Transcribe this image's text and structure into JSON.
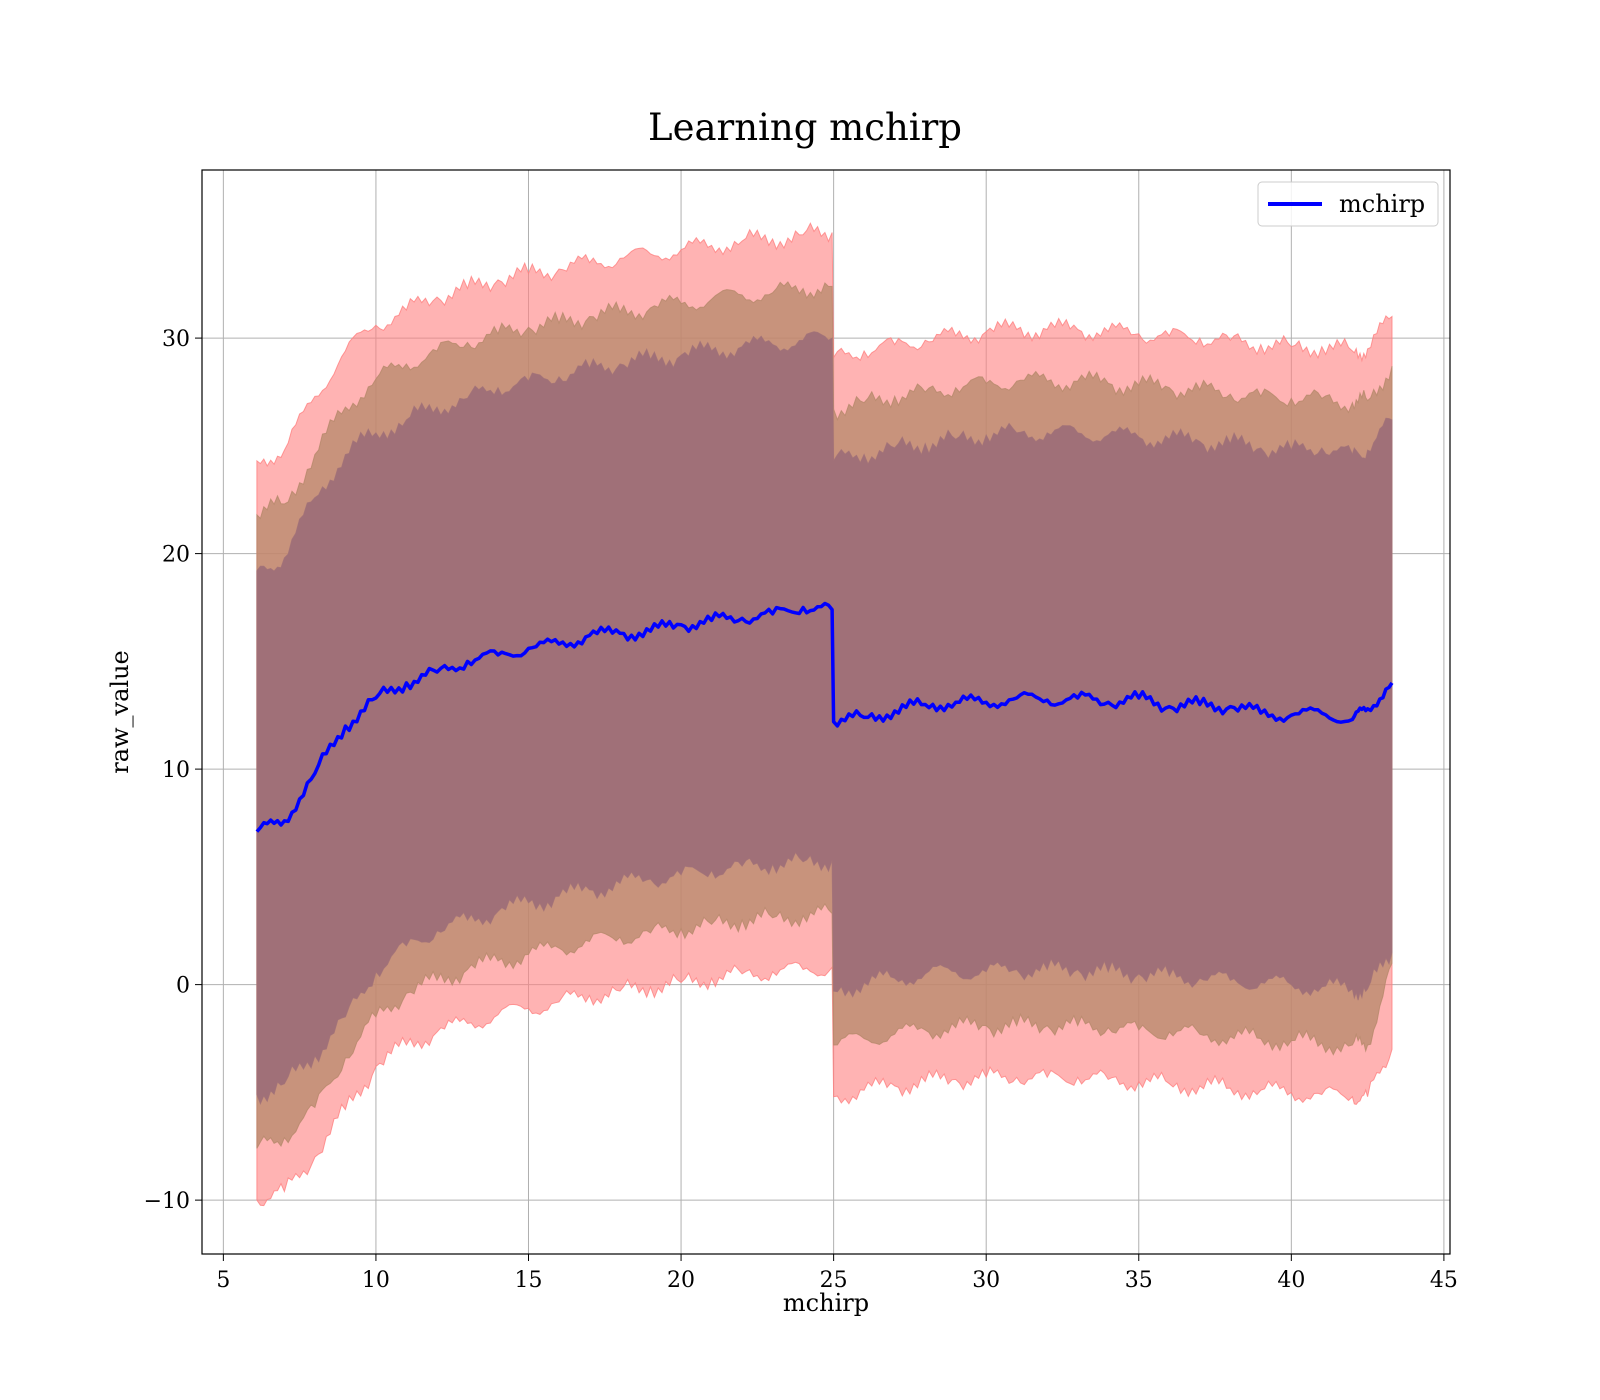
{
  "chart_data": {
    "type": "line",
    "title": "Learning mchirp",
    "xlabel": "mchirp",
    "ylabel": "raw_value",
    "xlim": [
      4.3,
      45.2
    ],
    "ylim": [
      -12.5,
      37.8
    ],
    "xticks": [
      5,
      10,
      15,
      20,
      25,
      30,
      35,
      40,
      45
    ],
    "yticks": [
      -10,
      0,
      10,
      20,
      30
    ],
    "xtick_labels": [
      "5",
      "10",
      "15",
      "20",
      "25",
      "30",
      "35",
      "40",
      "45"
    ],
    "ytick_labels": [
      "−10",
      "0",
      "10",
      "20",
      "30"
    ],
    "grid": true,
    "legend": {
      "position": "top-right",
      "entries": [
        "mchirp"
      ]
    },
    "colors": {
      "line": "#0000ff",
      "band_3sigma": "#ff8080",
      "band_2sigma": "#b5886a",
      "band_1sigma": "#a07078",
      "grid": "#b0b0b0"
    },
    "series": [
      {
        "name": "mchirp",
        "x": [
          6.1,
          7.0,
          8.0,
          9.0,
          10.0,
          11.0,
          12.0,
          13.0,
          14.0,
          15.0,
          16.0,
          17.0,
          18.0,
          19.0,
          20.0,
          21.0,
          22.0,
          23.0,
          24.0,
          24.95,
          25.0,
          26.0,
          27.0,
          28.0,
          29.0,
          30.0,
          31.0,
          32.0,
          33.0,
          34.0,
          35.0,
          36.0,
          37.0,
          38.0,
          39.0,
          40.0,
          41.0,
          42.0,
          42.5,
          43.3
        ],
        "values": [
          7.1,
          7.6,
          9.8,
          12.0,
          13.3,
          14.0,
          14.5,
          15.0,
          15.3,
          15.6,
          15.8,
          16.2,
          16.3,
          16.4,
          16.7,
          16.9,
          17.0,
          17.2,
          17.5,
          17.4,
          12.2,
          12.4,
          12.7,
          13.0,
          13.1,
          13.1,
          13.3,
          13.2,
          13.3,
          13.1,
          13.3,
          12.9,
          13.0,
          12.9,
          12.6,
          12.5,
          12.6,
          12.3,
          12.8,
          14.0
        ],
        "band_1sigma": {
          "lower": [
            -5.1,
            -4.6,
            -3.3,
            -1.5,
            0.6,
            1.8,
            2.5,
            3.0,
            3.4,
            3.8,
            4.1,
            4.4,
            4.7,
            4.9,
            5.1,
            5.3,
            5.5,
            5.6,
            5.7,
            5.8,
            -0.3,
            0.1,
            0.3,
            0.5,
            0.6,
            0.6,
            0.7,
            0.7,
            0.7,
            0.6,
            0.5,
            0.4,
            0.3,
            0.2,
            0.1,
            0.0,
            -0.1,
            -0.2,
            -0.2,
            1.5
          ],
          "upper": [
            19.2,
            19.8,
            22.6,
            24.6,
            25.6,
            26.2,
            26.8,
            27.2,
            27.7,
            28.0,
            28.2,
            28.6,
            28.8,
            29.0,
            29.2,
            29.4,
            29.6,
            29.7,
            29.9,
            30.0,
            24.3,
            24.6,
            24.9,
            25.1,
            25.3,
            25.5,
            25.6,
            25.6,
            25.6,
            25.5,
            25.4,
            25.3,
            25.2,
            25.1,
            24.9,
            24.8,
            24.9,
            24.6,
            24.8,
            26.2
          ]
        },
        "band_2sigma": {
          "lower": [
            -7.6,
            -7.1,
            -5.7,
            -3.4,
            -1.5,
            -0.4,
            0.2,
            0.7,
            1.1,
            1.4,
            1.7,
            2.0,
            2.2,
            2.4,
            2.6,
            2.8,
            3.0,
            3.1,
            3.2,
            3.3,
            -2.8,
            -2.5,
            -2.3,
            -2.1,
            -2.0,
            -1.9,
            -1.9,
            -1.9,
            -1.9,
            -2.0,
            -2.1,
            -2.2,
            -2.3,
            -2.4,
            -2.5,
            -2.6,
            -2.7,
            -2.8,
            -2.8,
            1.0
          ],
          "upper": [
            21.8,
            22.3,
            24.6,
            26.8,
            28.1,
            28.8,
            29.4,
            29.8,
            30.2,
            30.5,
            30.7,
            31.0,
            31.2,
            31.4,
            31.6,
            31.8,
            32.0,
            32.1,
            32.3,
            32.4,
            26.7,
            27.0,
            27.3,
            27.5,
            27.7,
            27.9,
            28.0,
            28.0,
            28.0,
            27.9,
            27.8,
            27.7,
            27.6,
            27.4,
            27.3,
            27.2,
            27.2,
            27.0,
            27.1,
            28.7
          ]
        },
        "band_3sigma": {
          "lower": [
            -10.0,
            -9.6,
            -8.0,
            -5.8,
            -3.8,
            -2.8,
            -2.2,
            -1.8,
            -1.4,
            -1.1,
            -0.8,
            -0.5,
            -0.3,
            -0.1,
            0.1,
            0.3,
            0.5,
            0.6,
            0.7,
            0.8,
            -5.2,
            -4.9,
            -4.7,
            -4.5,
            -4.4,
            -4.3,
            -4.3,
            -4.3,
            -4.3,
            -4.4,
            -4.5,
            -4.6,
            -4.7,
            -4.8,
            -4.9,
            -5.0,
            -5.1,
            -5.2,
            -5.2,
            -3.0
          ],
          "upper": [
            24.3,
            24.8,
            27.3,
            29.4,
            30.6,
            31.3,
            31.9,
            32.3,
            32.7,
            33.0,
            33.2,
            33.5,
            33.7,
            33.9,
            34.1,
            34.3,
            34.5,
            34.6,
            34.8,
            34.9,
            29.1,
            29.4,
            29.7,
            29.9,
            30.1,
            30.3,
            30.4,
            30.4,
            30.4,
            30.3,
            30.2,
            30.1,
            30.0,
            29.9,
            29.7,
            29.6,
            29.6,
            29.4,
            29.5,
            31.0
          ]
        }
      }
    ]
  }
}
